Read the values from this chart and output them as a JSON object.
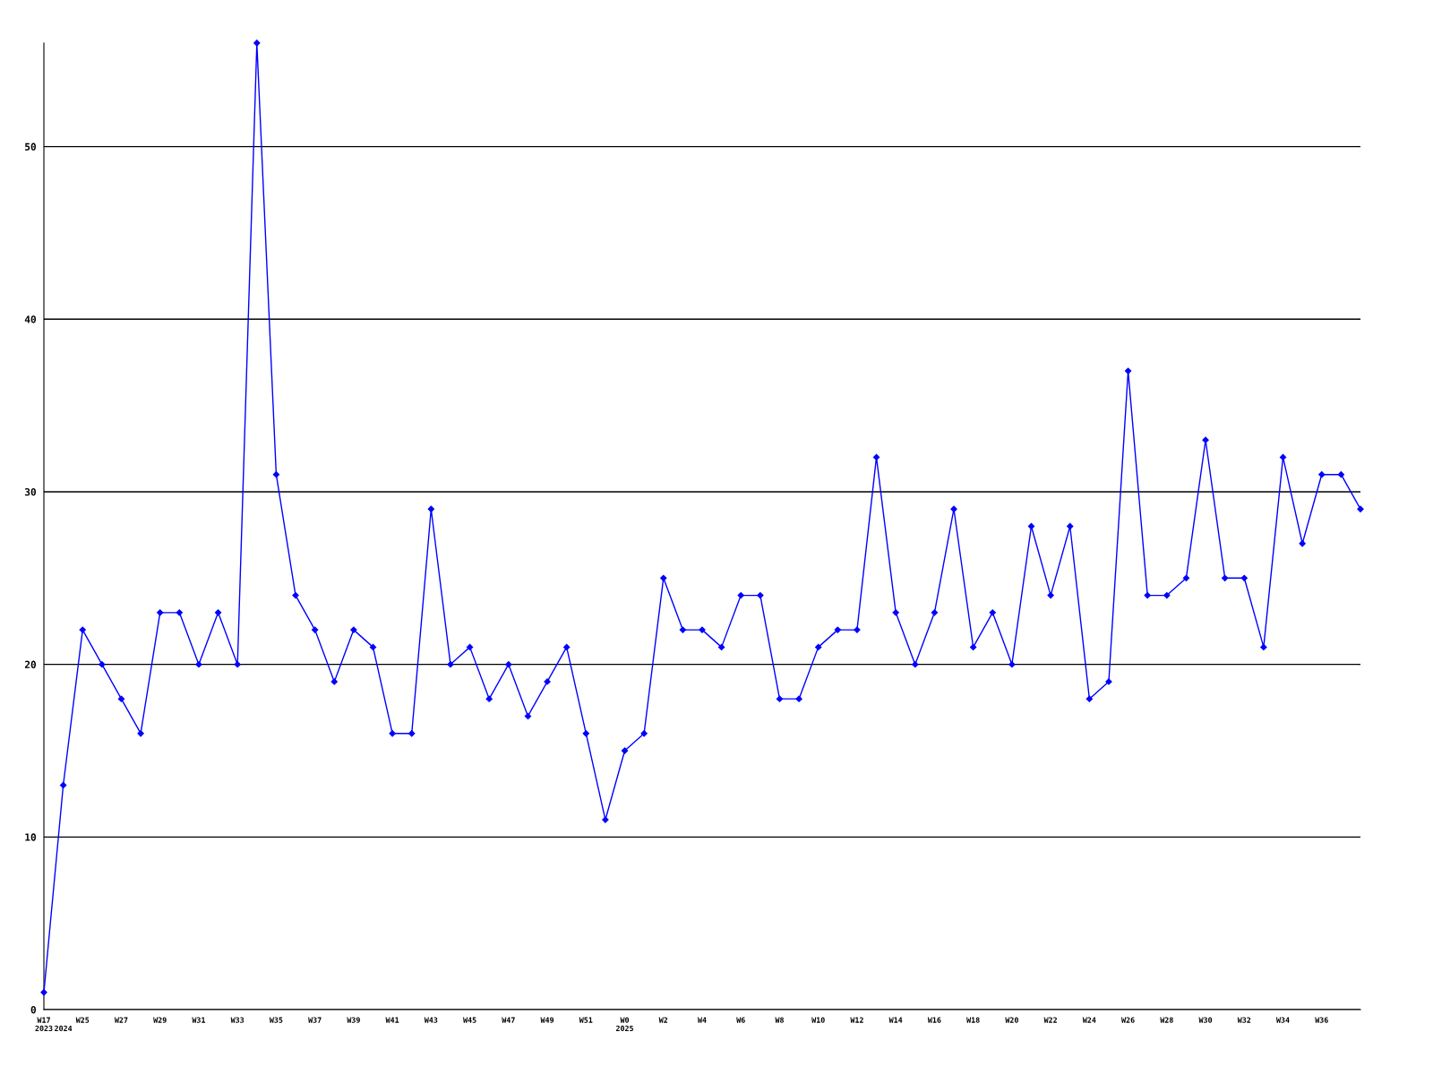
{
  "chart_data": {
    "type": "line",
    "categories": [
      "W17\n2023",
      "\n2024",
      "W25",
      null,
      "W27",
      null,
      "W29",
      null,
      "W31",
      null,
      "W33",
      null,
      "W35",
      null,
      "W37",
      null,
      "W39",
      null,
      "W41",
      null,
      "W43",
      null,
      "W45",
      null,
      "W47",
      null,
      "W49",
      null,
      "W51",
      null,
      "W0\n2025",
      null,
      "W2",
      null,
      "W4",
      null,
      "W6",
      null,
      "W8",
      null,
      "W10",
      null,
      "W12",
      null,
      "W14",
      null,
      "W16",
      null,
      "W18",
      null,
      "W20",
      null,
      "W22",
      null,
      "W24",
      null,
      "W26",
      null,
      "W28",
      null,
      "W30",
      null,
      "W32",
      null,
      "W34",
      null,
      "W36",
      null,
      null
    ],
    "series": [
      {
        "color": "#0000ff",
        "values": [
          1,
          13,
          22,
          20,
          18,
          16,
          23,
          23,
          20,
          23,
          20,
          56,
          31,
          24,
          22,
          19,
          22,
          21,
          16,
          16,
          29,
          20,
          21,
          18,
          20,
          17,
          19,
          21,
          16,
          11,
          15,
          16,
          25,
          22,
          22,
          21,
          24,
          24,
          18,
          18,
          21,
          22,
          22,
          32,
          23,
          20,
          23,
          29,
          21,
          23,
          20,
          28,
          24,
          28,
          18,
          19,
          37,
          24,
          24,
          25,
          33,
          25,
          25,
          21,
          32,
          27,
          31,
          31,
          29
        ]
      }
    ],
    "ylim": [
      0,
      56
    ],
    "yticks": [
      0,
      10,
      20,
      30,
      40,
      50
    ],
    "grid": "y",
    "marker": "diamond",
    "line_style": "solid"
  }
}
